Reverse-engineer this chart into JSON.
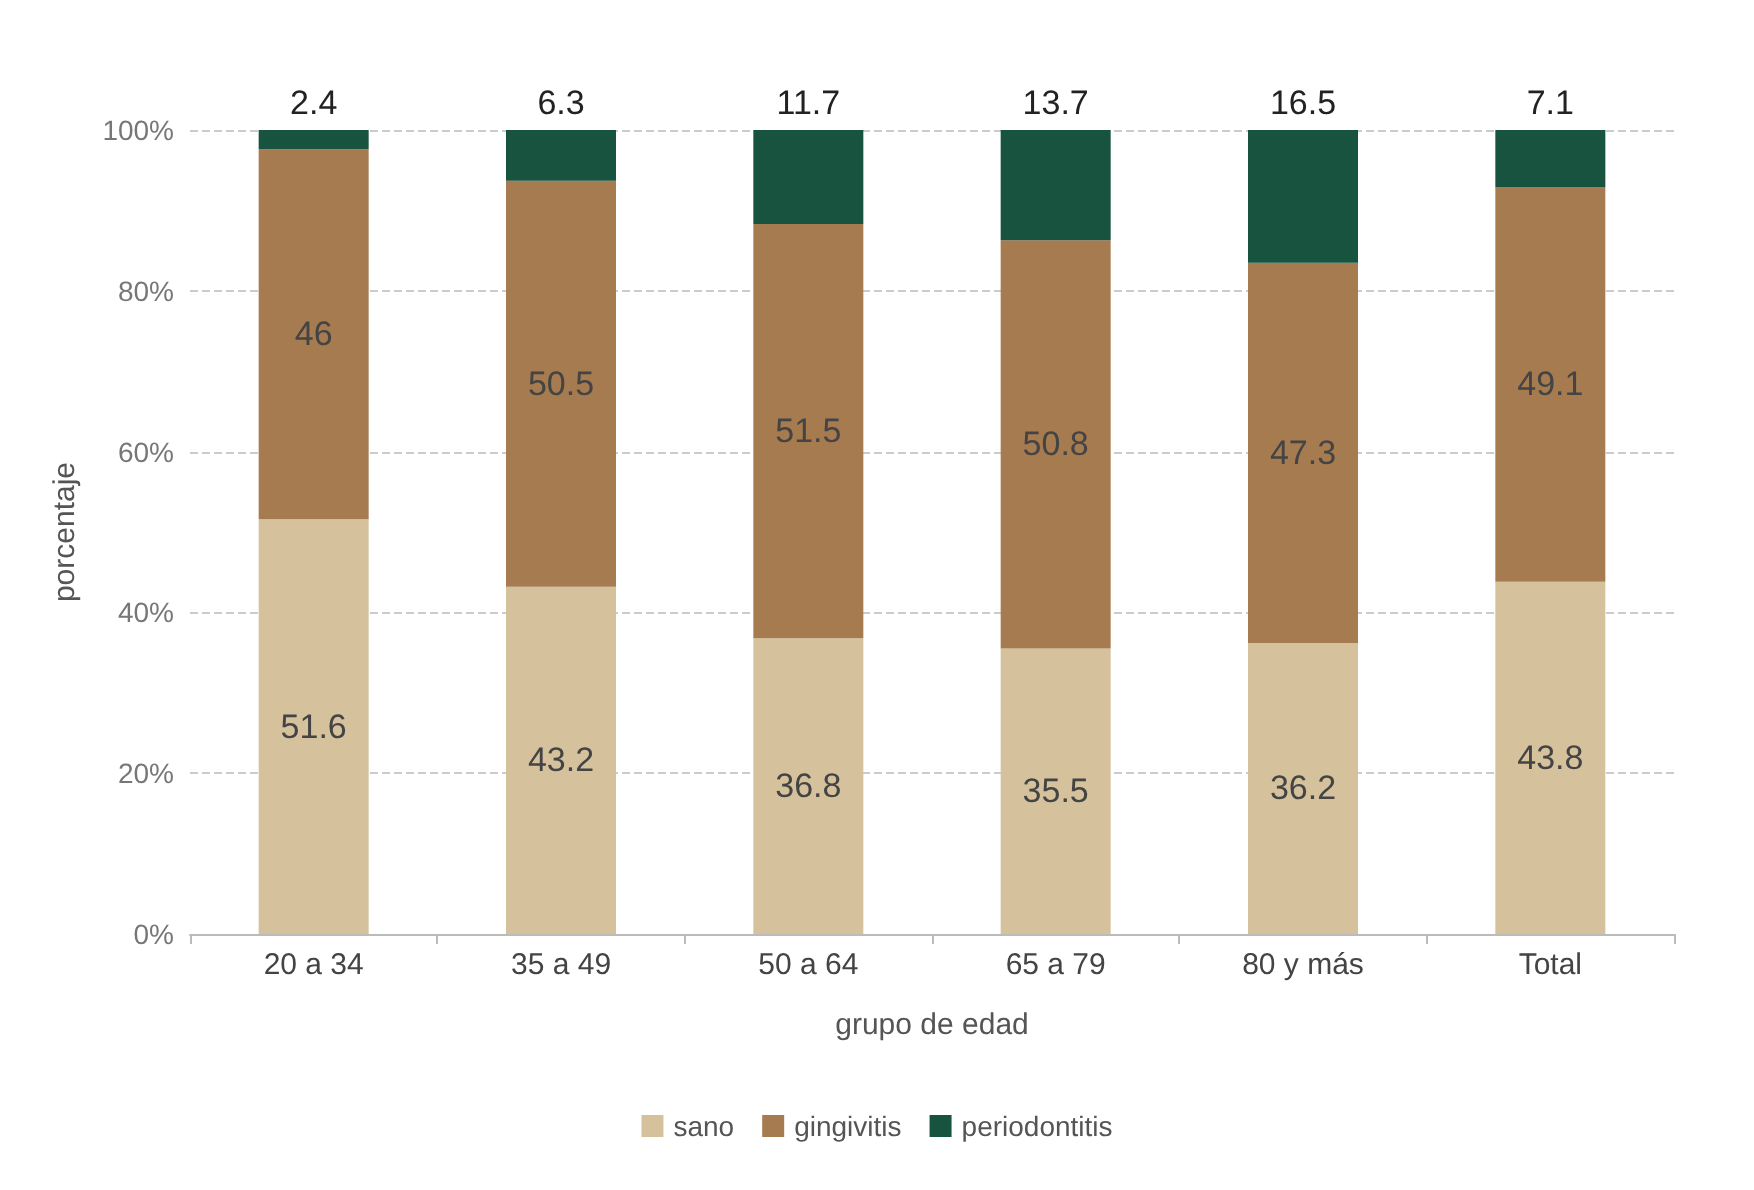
{
  "chart_data": {
    "type": "bar",
    "stacked": true,
    "xlabel": "grupo de edad",
    "ylabel": "porcentaje",
    "categories": [
      "20 a 34",
      "35 a 49",
      "50 a 64",
      "65 a 79",
      "80 y más",
      "Total"
    ],
    "series": [
      {
        "name": "sano",
        "color": "#d5c29d",
        "values": [
          51.6,
          43.2,
          36.8,
          35.5,
          36.2,
          43.8
        ]
      },
      {
        "name": "gingivitis",
        "color": "#a77b50",
        "values": [
          46,
          50.5,
          51.5,
          50.8,
          47.3,
          49.1
        ]
      },
      {
        "name": "periodontitis",
        "color": "#17533f",
        "values": [
          2.4,
          6.3,
          11.7,
          13.7,
          16.5,
          7.1
        ]
      }
    ],
    "ylim": [
      0,
      100
    ],
    "yticks": [
      {
        "value": 0,
        "label": "0%"
      },
      {
        "value": 20,
        "label": "20%"
      },
      {
        "value": 40,
        "label": "40%"
      },
      {
        "value": 60,
        "label": "60%"
      },
      {
        "value": 80,
        "label": "80%"
      },
      {
        "value": 100,
        "label": "100%"
      }
    ],
    "grid": "y",
    "legend": "bottom",
    "data_labels": true
  }
}
